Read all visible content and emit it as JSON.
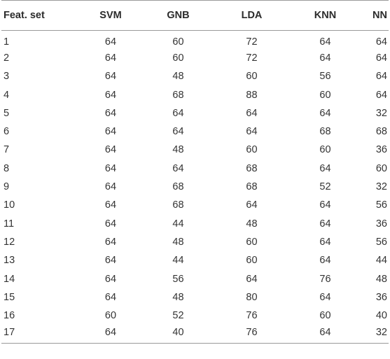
{
  "table": {
    "headers": [
      "Feat. set",
      "SVM",
      "GNB",
      "LDA",
      "KNN",
      "NN"
    ],
    "rows": [
      [
        "1",
        "64",
        "60",
        "72",
        "64",
        "64"
      ],
      [
        "2",
        "64",
        "60",
        "72",
        "64",
        "64"
      ],
      [
        "3",
        "64",
        "48",
        "60",
        "56",
        "64"
      ],
      [
        "4",
        "64",
        "68",
        "88",
        "60",
        "64"
      ],
      [
        "5",
        "64",
        "64",
        "64",
        "64",
        "32"
      ],
      [
        "6",
        "64",
        "64",
        "64",
        "68",
        "68"
      ],
      [
        "7",
        "64",
        "48",
        "60",
        "60",
        "36"
      ],
      [
        "8",
        "64",
        "64",
        "68",
        "64",
        "60"
      ],
      [
        "9",
        "64",
        "68",
        "68",
        "52",
        "32"
      ],
      [
        "10",
        "64",
        "68",
        "64",
        "64",
        "56"
      ],
      [
        "11",
        "64",
        "44",
        "48",
        "64",
        "36"
      ],
      [
        "12",
        "64",
        "48",
        "60",
        "64",
        "56"
      ],
      [
        "13",
        "64",
        "44",
        "60",
        "64",
        "44"
      ],
      [
        "14",
        "64",
        "56",
        "64",
        "76",
        "48"
      ],
      [
        "15",
        "64",
        "48",
        "80",
        "64",
        "36"
      ],
      [
        "16",
        "60",
        "52",
        "76",
        "60",
        "40"
      ],
      [
        "17",
        "64",
        "40",
        "76",
        "64",
        "32"
      ]
    ]
  }
}
